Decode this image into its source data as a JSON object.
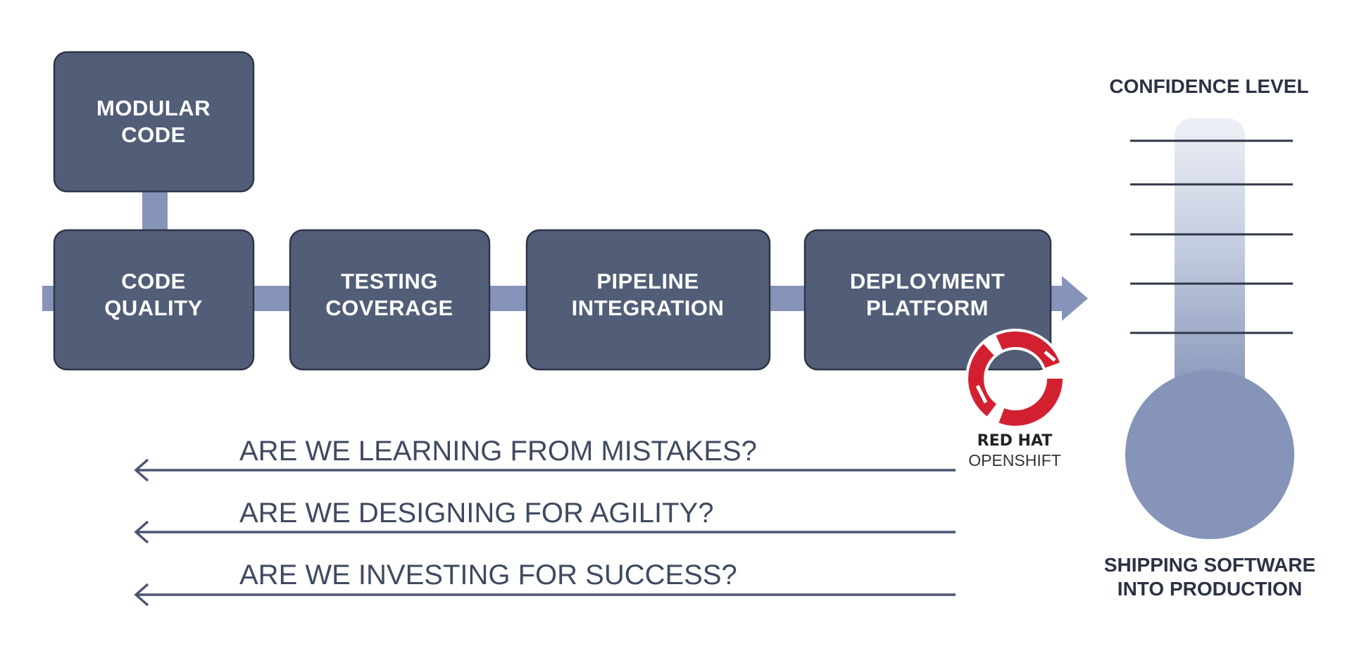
{
  "boxes": {
    "modular": [
      "MODULAR",
      "CODE"
    ],
    "quality": [
      "CODE",
      "QUALITY"
    ],
    "testing": [
      "TESTING",
      "COVERAGE"
    ],
    "pipeline": [
      "PIPELINE",
      "INTEGRATION"
    ],
    "deployment": [
      "DEPLOYMENT",
      "PLATFORM"
    ]
  },
  "questions": [
    "ARE WE LEARNING FROM MISTAKES?",
    "ARE WE DESIGNING FOR AGILITY?",
    "ARE WE INVESTING FOR SUCCESS?"
  ],
  "gauge": {
    "title": "CONFIDENCE LEVEL",
    "caption": [
      "SHIPPING SOFTWARE",
      "INTO PRODUCTION"
    ]
  },
  "logo": {
    "brand": "RED HAT",
    "product": "OPENSHIFT"
  },
  "colors": {
    "box_fill": "#525e77",
    "box_stroke": "#2e3548",
    "connector": "#8594b8",
    "question_line": "#4a5570",
    "gauge_bulb": "#8594b8",
    "gauge_tick": "#2f3649",
    "logo_red": "#d32031"
  },
  "icons": {
    "flow_arrow": "arrow-right-icon",
    "question_arrow": "arrow-left-icon",
    "logo": "redhat-openshift-ring-icon"
  }
}
